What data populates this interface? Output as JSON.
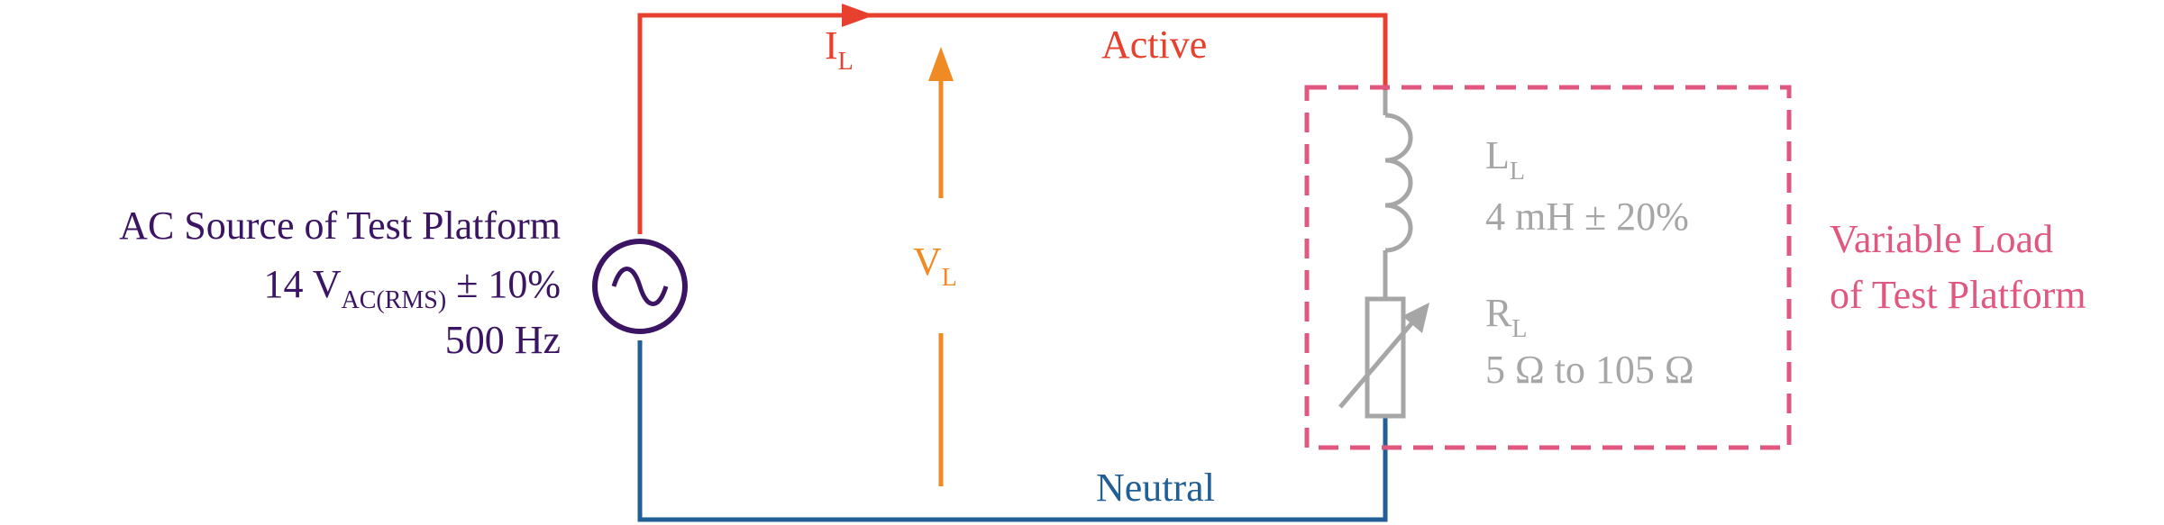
{
  "colors": {
    "active": "#e8402e",
    "neutral": "#215f96",
    "voltage": "#f08a24",
    "source": "#3b1463",
    "load": "#a6a6a6",
    "variable_box": "#e0577f",
    "background": "#ffffff"
  },
  "labels": {
    "current_main": "I",
    "current_sub": "L",
    "voltage_main": "V",
    "voltage_sub": "L",
    "active": "Active",
    "neutral": "Neutral"
  },
  "source": {
    "icon": "ac-source-icon",
    "title": "AC Source of Test Platform",
    "voltage_prefix": "14 V",
    "voltage_sub": "AC(RMS)",
    "voltage_suffix": " ± 10%",
    "frequency": "500 Hz"
  },
  "inductor": {
    "icon": "inductor-icon",
    "name_main": "L",
    "name_sub": "L",
    "value": "4 mH ± 20%"
  },
  "resistor": {
    "icon": "variable-resistor-icon",
    "name_main": "R",
    "name_sub": "L",
    "value": "5 Ω to 105 Ω"
  },
  "variable_load": {
    "line1": "Variable Load",
    "line2": "of Test Platform"
  }
}
